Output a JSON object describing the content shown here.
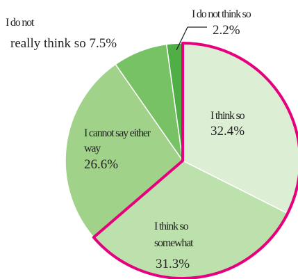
{
  "chart_data": {
    "type": "pie",
    "title": "",
    "categories": [
      "I think so",
      "I think so somewhat",
      "I cannot say either way",
      "I do not really think so",
      "I do not think so"
    ],
    "values": [
      32.4,
      31.3,
      26.6,
      7.5,
      2.2
    ],
    "value_labels": [
      "32.4%",
      "31.3%",
      "26.6%",
      "7.5%",
      "2.2%"
    ],
    "colors": [
      "#dcefd5",
      "#bde1ad",
      "#a0d28a",
      "#78c266",
      "#4fae45"
    ],
    "highlight_color": "#e6007e",
    "highlighted_slices": [
      0,
      1
    ],
    "start": "12 o'clock",
    "direction": "clockwise",
    "legend": "none",
    "label_parts": {
      "think_so_label": "I think so",
      "think_so_somewhat_1": "I think so",
      "think_so_somewhat_2": "somewhat",
      "cannot_say_1": "I cannot say either",
      "cannot_say_2": "way",
      "not_really_1": "I do not",
      "not_really_2": "really think so",
      "not_think_label": "I do not think so"
    }
  }
}
